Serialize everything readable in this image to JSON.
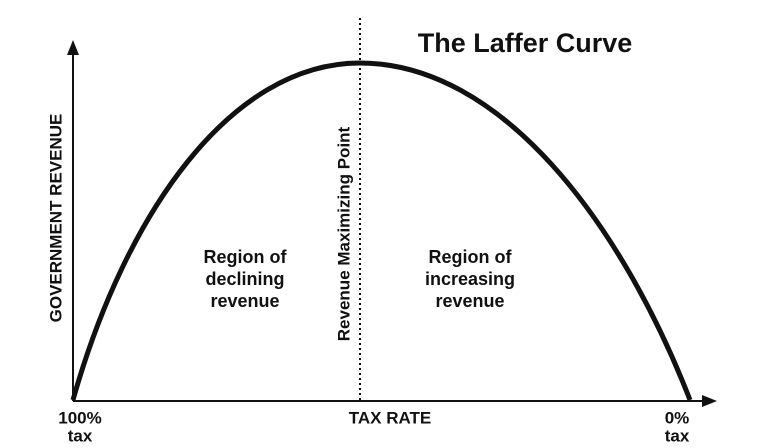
{
  "title": "The Laffer Curve",
  "axes": {
    "y_label": "GOVERNMENT REVENUE",
    "x_label": "TAX RATE",
    "x_left": [
      "100%",
      "tax"
    ],
    "x_right": [
      "0%",
      "tax"
    ]
  },
  "divider_label": "Revenue Maximizing Point",
  "regions": [
    {
      "lines": [
        "Region of",
        "declining",
        "revenue"
      ]
    },
    {
      "lines": [
        "Region of",
        "increasing",
        "revenue"
      ]
    }
  ]
}
